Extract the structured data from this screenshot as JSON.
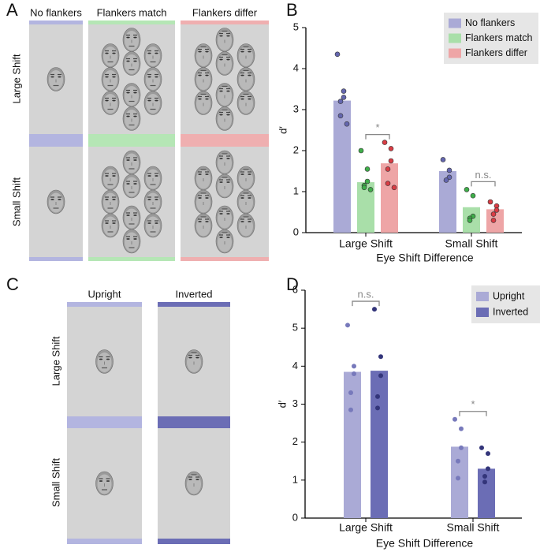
{
  "panel_labels": [
    "A",
    "B",
    "C",
    "D"
  ],
  "panel_a": {
    "columns": [
      "No flankers",
      "Flankers match",
      "Flankers differ"
    ],
    "rows": [
      "Large Shift",
      "Small Shift"
    ]
  },
  "panel_c": {
    "columns": [
      "Upright",
      "Inverted"
    ],
    "rows": [
      "Large Shift",
      "Small Shift"
    ]
  },
  "chart_data": [
    {
      "type": "bar",
      "categories": [
        "Large Shift",
        "Small Shift"
      ],
      "x_label": "Eye Shift Difference",
      "y_label": "d′",
      "ylim": [
        0,
        5
      ],
      "yticks": [
        0,
        1,
        2,
        3,
        4,
        5
      ],
      "legend": "top-right",
      "annotations": [
        "*",
        "n.s."
      ],
      "series": [
        {
          "name": "No flankers",
          "color": "#aaaad6",
          "point_color": "#6466ae",
          "values": [
            3.22,
            1.5
          ],
          "points": [
            [
              4.35,
              3.45,
              3.3,
              3.2,
              2.85,
              2.65
            ],
            [
              1.78,
              1.52,
              1.35,
              1.28
            ]
          ]
        },
        {
          "name": "Flankers match",
          "color": "#a9dfa9",
          "point_color": "#3fae4a",
          "values": [
            1.23,
            0.62
          ],
          "points": [
            [
              2.0,
              1.55,
              1.25,
              1.15,
              1.1,
              1.05
            ],
            [
              1.05,
              0.9,
              0.4,
              0.35,
              0.3
            ]
          ]
        },
        {
          "name": "Flankers differ",
          "color": "#eea5a6",
          "point_color": "#d93d45",
          "values": [
            1.69,
            0.57
          ],
          "points": [
            [
              2.2,
              2.05,
              1.75,
              1.55,
              1.2,
              1.1
            ],
            [
              0.75,
              0.65,
              0.55,
              0.45,
              0.3
            ]
          ]
        }
      ]
    },
    {
      "type": "bar",
      "categories": [
        "Large Shift",
        "Small Shift"
      ],
      "x_label": "Eye Shift Difference",
      "y_label": "d′",
      "ylim": [
        0,
        6
      ],
      "yticks": [
        0,
        1,
        2,
        3,
        4,
        5,
        6
      ],
      "legend": "top-right",
      "annotations": [
        "n.s.",
        "*"
      ],
      "series": [
        {
          "name": "Upright",
          "color": "#aaaad6",
          "point_color": "#7779bb",
          "values": [
            3.85,
            1.88
          ],
          "points": [
            [
              5.08,
              4.0,
              3.8,
              3.3,
              2.85
            ],
            [
              2.6,
              2.35,
              1.85,
              1.5,
              1.05
            ]
          ]
        },
        {
          "name": "Inverted",
          "color": "#6b6db5",
          "point_color": "#33357a",
          "values": [
            3.88,
            1.3
          ],
          "points": [
            [
              5.5,
              4.25,
              3.75,
              3.2,
              2.9
            ],
            [
              1.85,
              1.7,
              1.3,
              1.1,
              0.95
            ]
          ]
        }
      ]
    }
  ]
}
